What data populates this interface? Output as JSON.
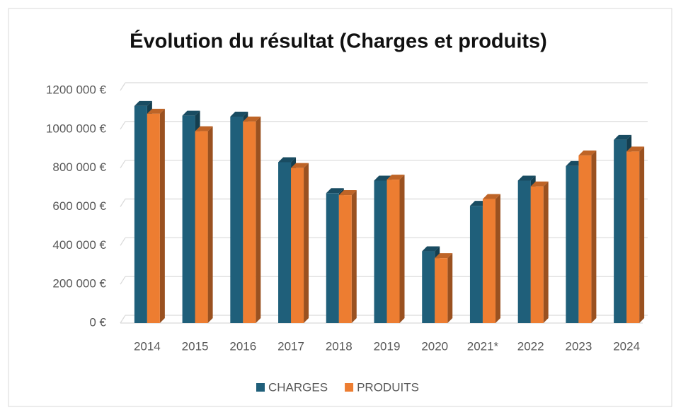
{
  "chart_data": {
    "type": "bar3d",
    "title": "Évolution du résultat (Charges et produits)",
    "categories": [
      "2014",
      "2015",
      "2016",
      "2017",
      "2018",
      "2019",
      "2020",
      "2021*",
      "2022",
      "2023",
      "2024"
    ],
    "series": [
      {
        "name": "CHARGES",
        "color": "#1f5f7a",
        "values": [
          1120000,
          1070000,
          1065000,
          830000,
          670000,
          735000,
          370000,
          605000,
          735000,
          810000,
          945000
        ]
      },
      {
        "name": "PRODUITS",
        "color": "#ed7d31",
        "values": [
          1080000,
          990000,
          1040000,
          800000,
          660000,
          740000,
          335000,
          640000,
          705000,
          865000,
          885000
        ]
      }
    ],
    "ylim": [
      0,
      1200000
    ],
    "yticks": [
      {
        "value": 0,
        "label": "0 €"
      },
      {
        "value": 200000,
        "label": "200 000 €"
      },
      {
        "value": 400000,
        "label": "400 000 €"
      },
      {
        "value": 600000,
        "label": "600 000 €"
      },
      {
        "value": 800000,
        "label": "800 000 €"
      },
      {
        "value": 1000000,
        "label": "1000 000 €"
      },
      {
        "value": 1200000,
        "label": "1200 000 €"
      }
    ],
    "grid": true,
    "legend": "bottom"
  }
}
